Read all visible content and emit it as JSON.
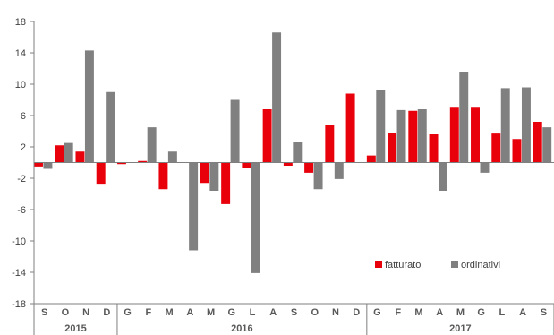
{
  "chart_data": {
    "type": "bar",
    "title": "",
    "xlabel": "",
    "ylabel": "",
    "ylim": [
      -18,
      18
    ],
    "yticks": [
      18,
      14,
      10,
      6,
      2,
      -2,
      -6,
      -10,
      -14,
      -18
    ],
    "grid": false,
    "legend_position": "bottom-right",
    "categories": [
      "S",
      "O",
      "N",
      "D",
      "G",
      "F",
      "M",
      "A",
      "M",
      "G",
      "L",
      "A",
      "S",
      "O",
      "N",
      "D",
      "G",
      "F",
      "M",
      "A",
      "M",
      "G",
      "L",
      "A",
      "S"
    ],
    "year_labels": [
      {
        "label": "2015",
        "start": 0,
        "end": 3
      },
      {
        "label": "2016",
        "start": 4,
        "end": 15
      },
      {
        "label": "2017",
        "start": 16,
        "end": 24
      }
    ],
    "series": [
      {
        "name": "fatturato",
        "color": "#e8000b",
        "values": [
          -0.5,
          2.2,
          1.4,
          -2.7,
          -0.2,
          0.2,
          -3.4,
          0,
          -2.6,
          -5.3,
          -0.7,
          6.8,
          -0.4,
          -1.3,
          4.8,
          8.8,
          0.9,
          3.8,
          6.6,
          3.6,
          7.0,
          7.0,
          3.7,
          3.0,
          5.2
        ]
      },
      {
        "name": "ordinativi",
        "color": "#808080",
        "values": [
          -0.8,
          2.5,
          14.3,
          9.0,
          0,
          4.5,
          1.4,
          -11.2,
          -3.6,
          8.0,
          -14.1,
          16.6,
          2.6,
          -3.4,
          -2.1,
          0,
          9.3,
          6.7,
          6.8,
          -3.6,
          11.6,
          -1.3,
          9.5,
          9.6,
          4.5
        ]
      }
    ]
  }
}
